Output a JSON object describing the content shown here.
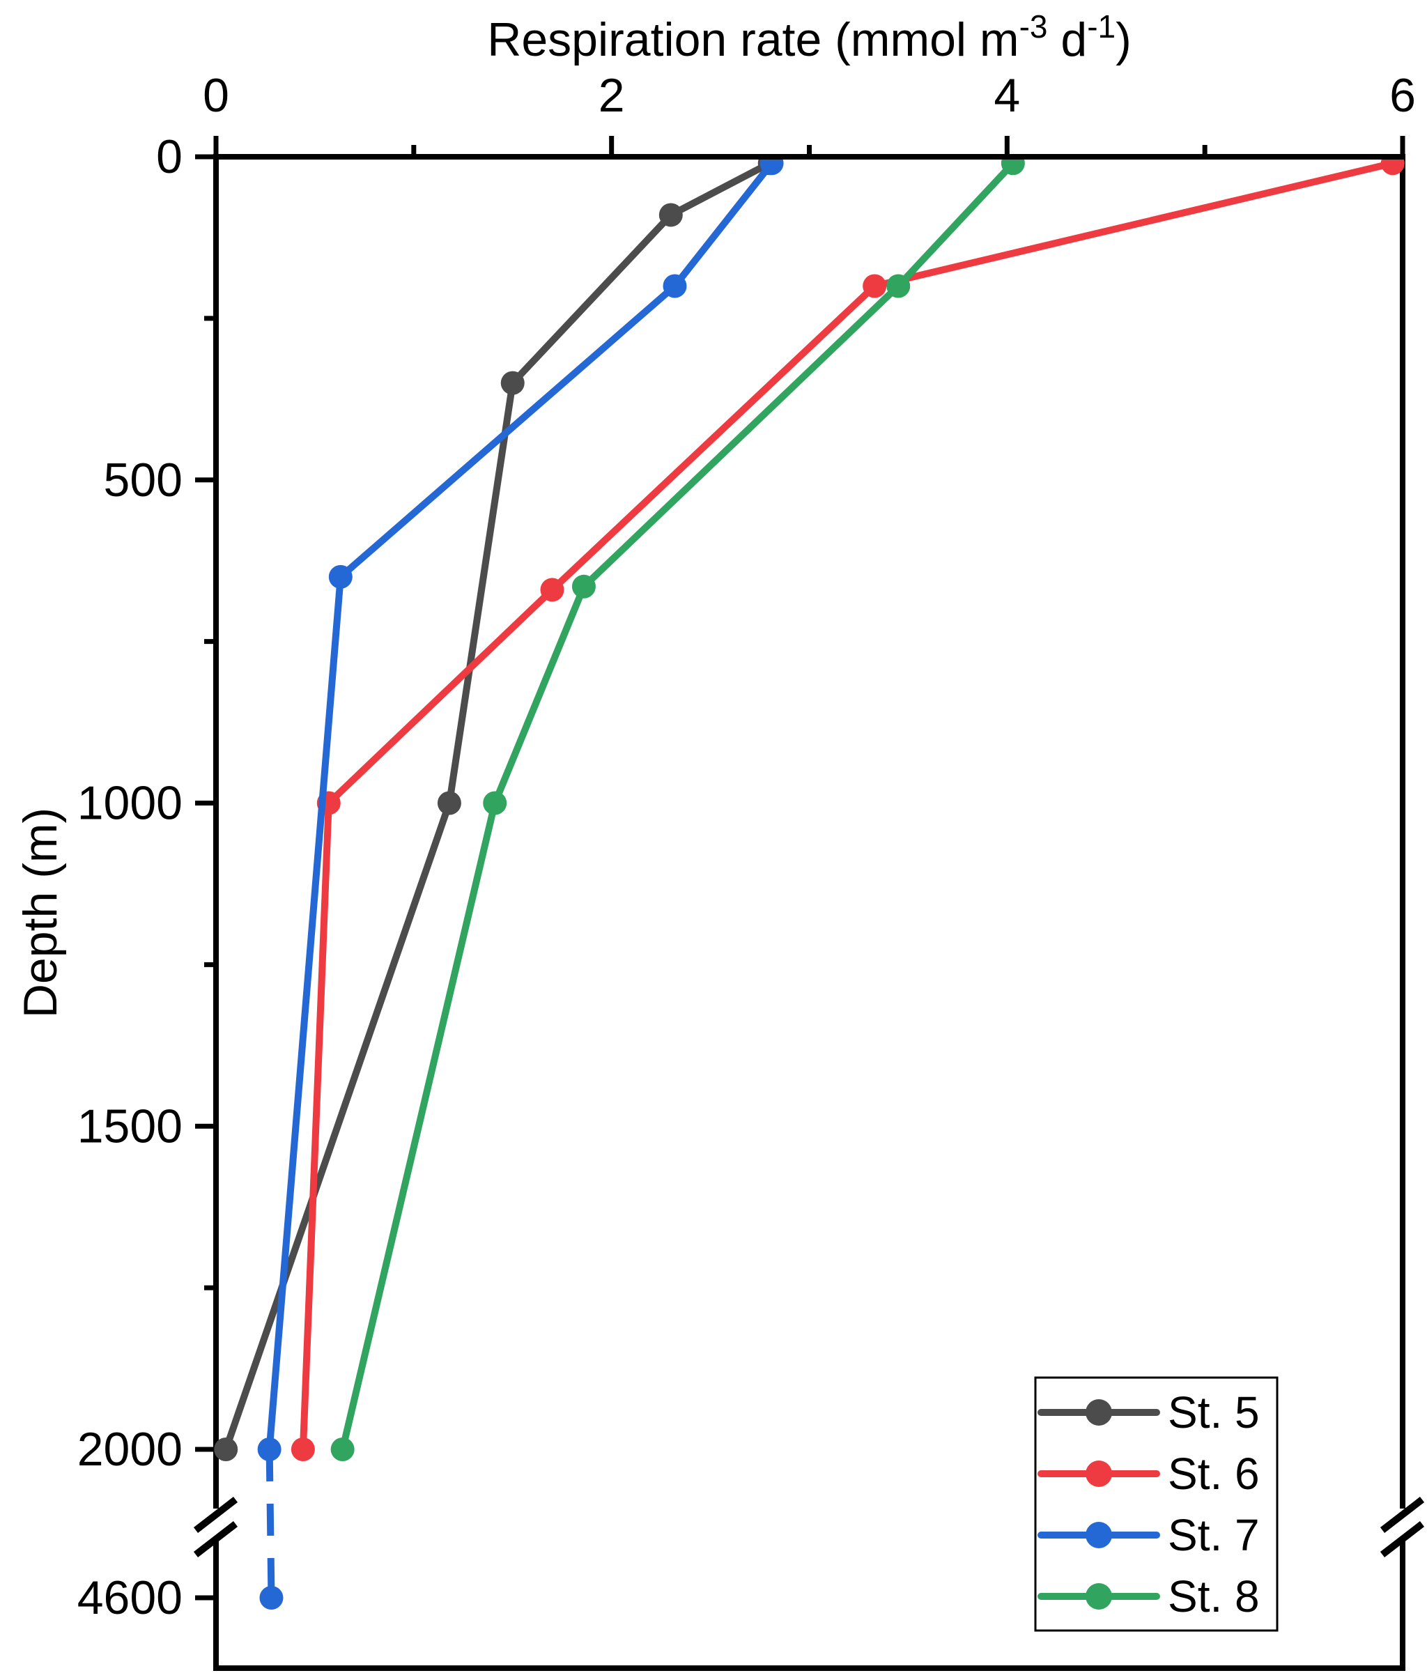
{
  "figure": {
    "background": "#ffffff",
    "text_color": "#000000",
    "axis_color": "#000000"
  },
  "chart_data": {
    "type": "line",
    "title": "",
    "xlabel": "Respiration rate (mmol m⁻³ d⁻¹)",
    "xlabel_segments": [
      {
        "t": "Respiration rate (mmol m"
      },
      {
        "t": "-3",
        "sup": true
      },
      {
        "t": " d"
      },
      {
        "t": "-1",
        "sup": true
      },
      {
        "t": ")"
      }
    ],
    "ylabel": "Depth (m)",
    "x_axis": {
      "position": "top",
      "min": 0,
      "max": 6,
      "major_ticks": [
        0,
        2,
        4,
        6
      ],
      "major_tick_labels": [
        "0",
        "2",
        "4",
        "6"
      ],
      "minor_ticks": [
        1,
        3,
        5
      ]
    },
    "y_axis": {
      "orientation": "depth-inverted",
      "min": 0,
      "major_ticks": [
        0,
        500,
        1000,
        1500,
        2000
      ],
      "major_tick_labels": [
        "0",
        "500",
        "1000",
        "1500",
        "2000"
      ],
      "minor_ticks": [
        250,
        750,
        1250,
        1750
      ],
      "axis_break_after": 2000,
      "post_break_tick": 4600,
      "post_break_tick_label": "4600"
    },
    "series": [
      {
        "name": "St. 5",
        "color": "#4c4c4c",
        "marker": "circle",
        "points": [
          {
            "x": 2.8,
            "depth": 10
          },
          {
            "x": 2.3,
            "depth": 90
          },
          {
            "x": 1.5,
            "depth": 350
          },
          {
            "x": 1.18,
            "depth": 1000
          },
          {
            "x": 0.05,
            "depth": 2000
          }
        ]
      },
      {
        "name": "St. 6",
        "color": "#ee3b41",
        "marker": "circle",
        "points": [
          {
            "x": 5.95,
            "depth": 10
          },
          {
            "x": 3.33,
            "depth": 200
          },
          {
            "x": 1.7,
            "depth": 670
          },
          {
            "x": 0.57,
            "depth": 1000
          },
          {
            "x": 0.44,
            "depth": 2000
          }
        ]
      },
      {
        "name": "St. 7",
        "color": "#2368d4",
        "marker": "circle",
        "dashed_below_depth": 2000,
        "points": [
          {
            "x": 2.81,
            "depth": 10
          },
          {
            "x": 2.32,
            "depth": 200
          },
          {
            "x": 0.63,
            "depth": 650
          },
          {
            "x": 0.27,
            "depth": 2000
          },
          {
            "x": 0.28,
            "depth": 4600
          }
        ]
      },
      {
        "name": "St. 8",
        "color": "#31a55f",
        "marker": "circle",
        "points": [
          {
            "x": 4.03,
            "depth": 10
          },
          {
            "x": 3.45,
            "depth": 200
          },
          {
            "x": 1.86,
            "depth": 665
          },
          {
            "x": 1.41,
            "depth": 1000
          },
          {
            "x": 0.64,
            "depth": 2000
          }
        ]
      }
    ],
    "legend": {
      "position": "bottom-right",
      "items": [
        "St. 5",
        "St. 6",
        "St. 7",
        "St. 8"
      ]
    }
  }
}
